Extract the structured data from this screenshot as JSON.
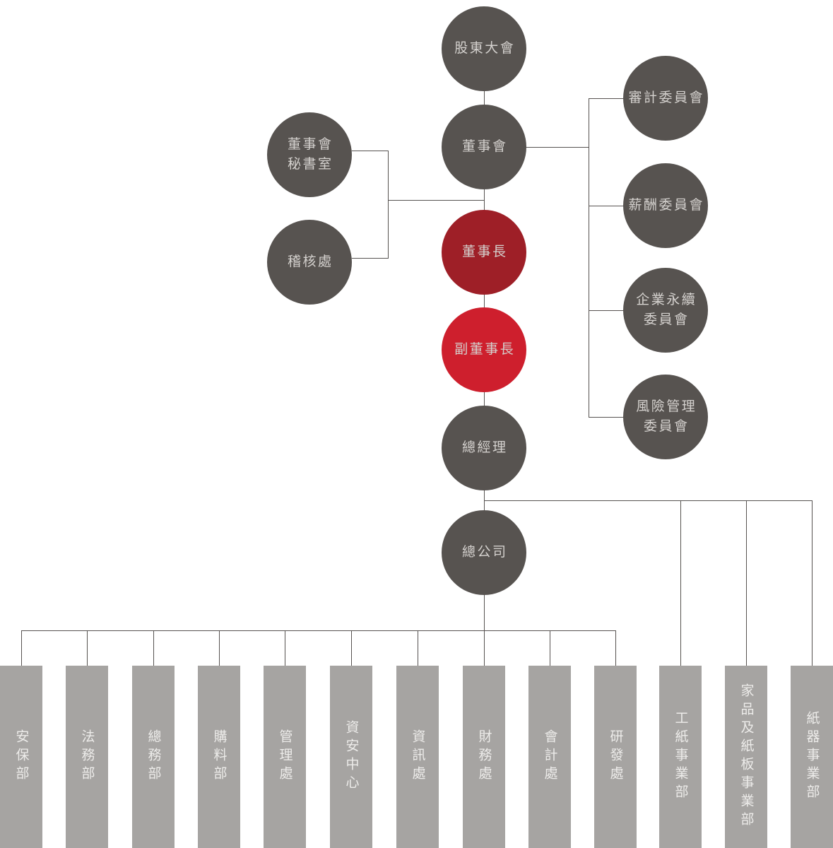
{
  "nodes": {
    "main": [
      {
        "id": "shareholders-meeting",
        "lines": [
          "股東大會"
        ],
        "variant": "dark"
      },
      {
        "id": "board-of-directors",
        "lines": [
          "董事會"
        ],
        "variant": "dark"
      },
      {
        "id": "chairman",
        "lines": [
          "董事長"
        ],
        "variant": "dark-red"
      },
      {
        "id": "vice-chairman",
        "lines": [
          "副董事長"
        ],
        "variant": "red"
      },
      {
        "id": "general-manager",
        "lines": [
          "總經理"
        ],
        "variant": "dark"
      },
      {
        "id": "head-office",
        "lines": [
          "總公司"
        ],
        "variant": "dark"
      }
    ],
    "left": [
      {
        "id": "board-secretariat",
        "lines": [
          "董事會",
          "秘書室"
        ],
        "variant": "dark"
      },
      {
        "id": "audit-office",
        "lines": [
          "稽核處"
        ],
        "variant": "dark"
      }
    ],
    "committees": [
      {
        "id": "audit-committee",
        "lines": [
          "審計委員會"
        ],
        "variant": "dark"
      },
      {
        "id": "compensation-committee",
        "lines": [
          "薪酬委員會"
        ],
        "variant": "dark"
      },
      {
        "id": "sustainability-committee",
        "lines": [
          "企業永續",
          "委員會"
        ],
        "variant": "dark"
      },
      {
        "id": "risk-management-committee",
        "lines": [
          "風險管理",
          "委員會"
        ],
        "variant": "dark"
      }
    ],
    "departments": [
      {
        "id": "security-dept",
        "label": "安保部"
      },
      {
        "id": "legal-dept",
        "label": "法務部"
      },
      {
        "id": "general-affairs-dept",
        "label": "總務部"
      },
      {
        "id": "purchasing-dept",
        "label": "購料部"
      },
      {
        "id": "management-office",
        "label": "管理處"
      },
      {
        "id": "info-security-center",
        "label": "資安中心"
      },
      {
        "id": "information-office",
        "label": "資訊處"
      },
      {
        "id": "finance-office",
        "label": "財務處"
      },
      {
        "id": "accounting-office",
        "label": "會計處"
      },
      {
        "id": "rd-office",
        "label": "研發處"
      },
      {
        "id": "industrial-paper-division",
        "label": "工紙事業部"
      },
      {
        "id": "home-paperboard-division",
        "label": "家品及紙板事業部"
      },
      {
        "id": "paper-container-division",
        "label": "紙器事業部"
      }
    ]
  },
  "colors": {
    "background": "#ffffff",
    "node_dark": "#575350",
    "node_dark_red": "#9e1f27",
    "node_red": "#ce1f2d",
    "department_bar": "#a6a4a2",
    "connector": "#565250",
    "node_text": "#d4d1ce",
    "bar_text": "#edecea"
  }
}
